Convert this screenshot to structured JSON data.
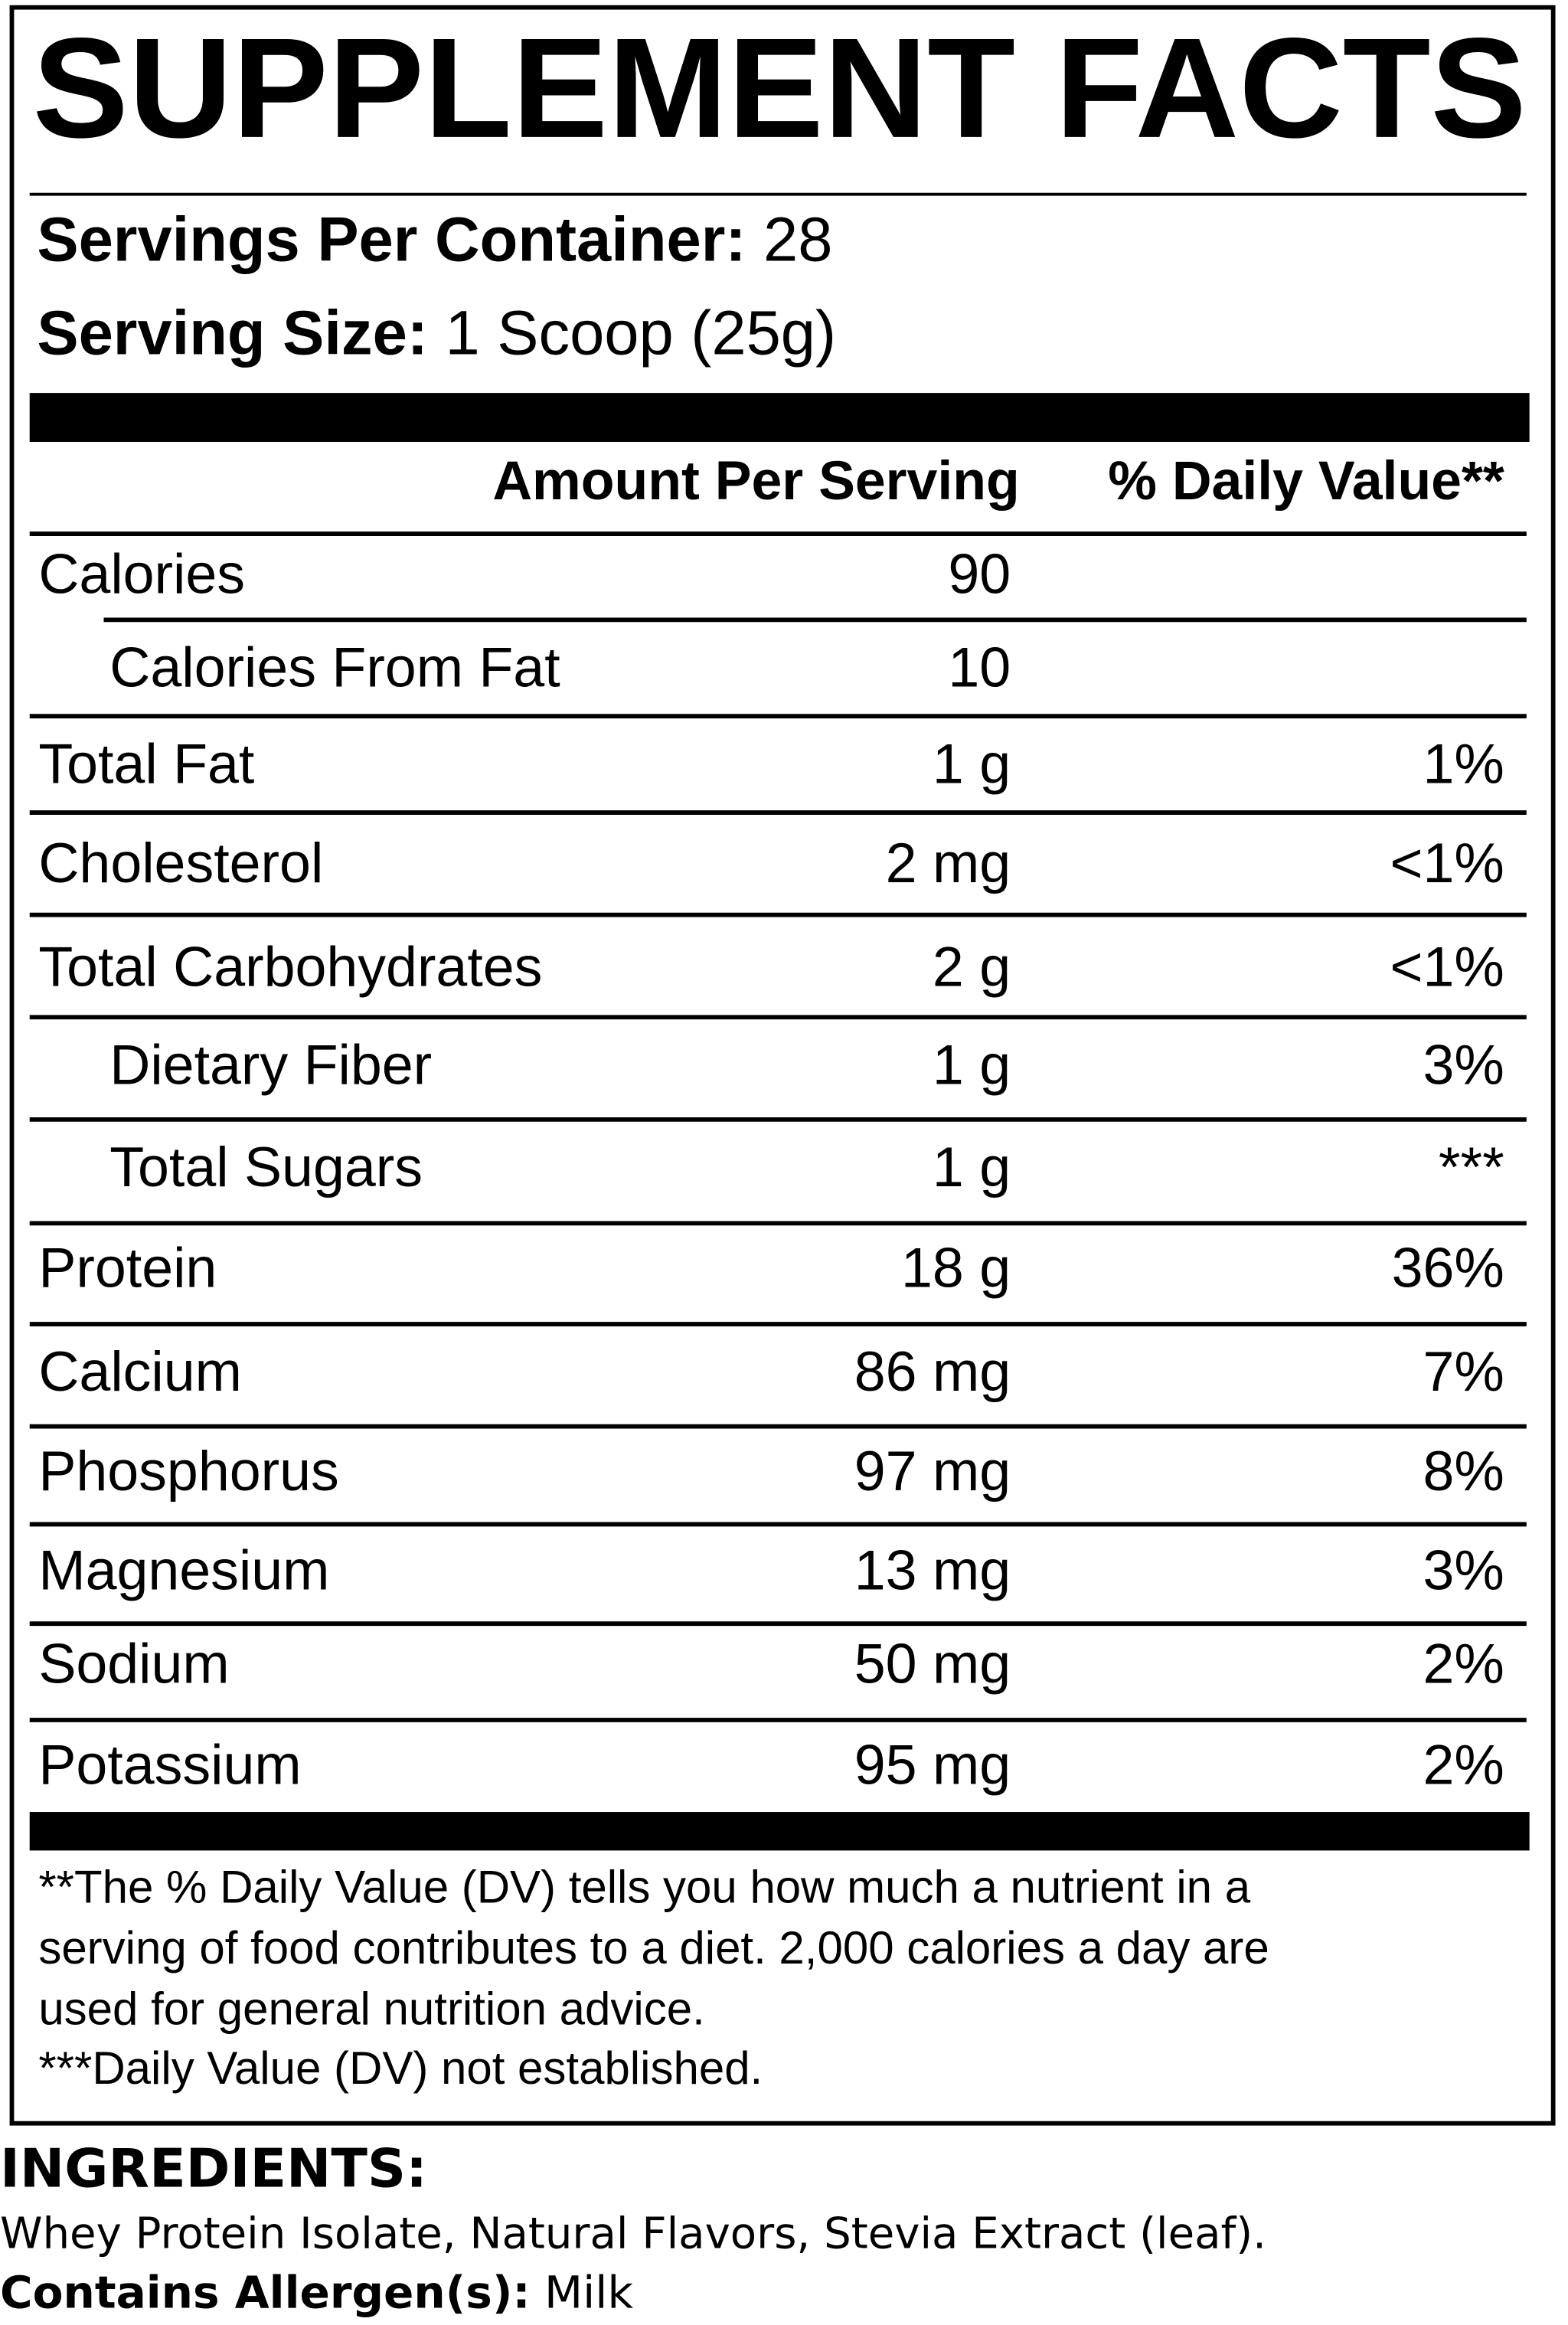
{
  "title": "SUPPLEMENT FACTS",
  "servings": {
    "label": "Servings Per Container:",
    "value": "28"
  },
  "serving_size": {
    "label": "Serving Size:",
    "value": "1 Scoop (25g)"
  },
  "header": {
    "amount": "Amount Per Serving",
    "daily_value": "% Daily Value**"
  },
  "rows": [
    [
      "Calories",
      "90",
      ""
    ],
    [
      "Calories From Fat",
      "10",
      ""
    ],
    [
      "Total Fat",
      "1 g",
      "1%"
    ],
    [
      "Cholesterol",
      "2 mg",
      "<1%"
    ],
    [
      "Total Carbohydrates",
      "2 g",
      "<1%"
    ],
    [
      "Dietary Fiber",
      "1 g",
      "3%"
    ],
    [
      "Total Sugars",
      "1 g",
      "***"
    ],
    [
      "Protein",
      "18 g",
      "36%"
    ],
    [
      "Calcium",
      "86 mg",
      "7%"
    ],
    [
      "Phosphorus",
      "97 mg",
      "8%"
    ],
    [
      "Magnesium",
      "13 mg",
      "3%"
    ],
    [
      "Sodium",
      "50 mg",
      "2%"
    ],
    [
      "Potassium",
      "95 mg",
      "2%"
    ]
  ],
  "footnotes": [
    "**The % Daily Value (DV) tells you how much a nutrient in a",
    "serving of food contributes to a diet. 2,000 calories a day are",
    "used for general nutrition advice.",
    "***Daily Value (DV) not established."
  ],
  "ingredients": {
    "heading": "INGREDIENTS:",
    "text": "Whey Protein Isolate, Natural Flavors, Stevia Extract (leaf).",
    "allergen_label": "Contains Allergen(s):",
    "allergen_value": "Milk"
  }
}
